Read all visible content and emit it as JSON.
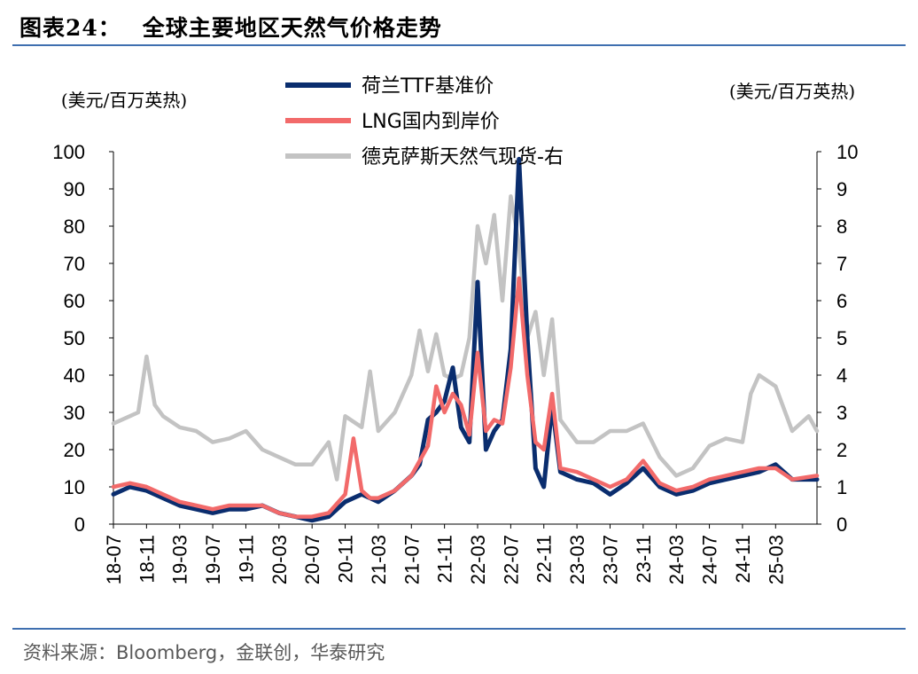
{
  "header": {
    "figure_no": "图表24：",
    "title": "全球主要地区天然气价格走势"
  },
  "source": "资料来源：Bloomberg，金联创，华泰研究",
  "colors": {
    "ttf": "#0a2d6e",
    "lng": "#f26a6a",
    "hh": "#c3c3c3",
    "rule": "#3f6fb0"
  },
  "chart_data": {
    "type": "line",
    "left_axis_unit": "(美元/百万英热)",
    "right_axis_unit": "(美元/百万英热)",
    "y_left": {
      "min": 0,
      "max": 100,
      "ticks": [
        "0",
        "10",
        "20",
        "30",
        "40",
        "50",
        "60",
        "70",
        "80",
        "90",
        "100"
      ]
    },
    "y_right": {
      "min": 0,
      "max": 10,
      "ticks": [
        "0",
        "1",
        "2",
        "3",
        "4",
        "5",
        "6",
        "7",
        "8",
        "9",
        "10"
      ]
    },
    "x_tick_labels": [
      "18-07",
      "18-11",
      "19-03",
      "19-07",
      "19-11",
      "20-03",
      "20-07",
      "20-11",
      "21-03",
      "21-07",
      "21-11",
      "22-03",
      "22-07",
      "22-11",
      "23-03",
      "23-07",
      "23-11",
      "24-03",
      "24-07",
      "24-11",
      "25-03"
    ],
    "x_range": [
      "2018-07",
      "2025-08"
    ],
    "legend": [
      "荷兰TTF基准价",
      "LNG国内到岸价",
      "德克萨斯天然气现货-右"
    ],
    "series": [
      {
        "name": "荷兰TTF基准价",
        "axis": "left",
        "x": [
          "2018-07",
          "2018-09",
          "2018-11",
          "2019-01",
          "2019-03",
          "2019-05",
          "2019-07",
          "2019-09",
          "2019-11",
          "2020-01",
          "2020-03",
          "2020-05",
          "2020-07",
          "2020-09",
          "2020-11",
          "2021-01",
          "2021-02",
          "2021-03",
          "2021-05",
          "2021-07",
          "2021-08",
          "2021-09",
          "2021-10",
          "2021-11",
          "2021-12",
          "2022-01",
          "2022-02",
          "2022-03",
          "2022-04",
          "2022-05",
          "2022-06",
          "2022-07",
          "2022-08",
          "2022-09",
          "2022-10",
          "2022-11",
          "2022-12",
          "2023-01",
          "2023-03",
          "2023-05",
          "2023-07",
          "2023-09",
          "2023-11",
          "2024-01",
          "2024-03",
          "2024-05",
          "2024-07",
          "2024-09",
          "2024-11",
          "2025-01",
          "2025-03",
          "2025-05",
          "2025-08"
        ],
        "values": [
          8,
          10,
          9,
          7,
          5,
          4,
          3,
          4,
          4,
          5,
          3,
          2,
          1,
          2,
          6,
          8,
          7,
          6,
          9,
          13,
          16,
          28,
          30,
          33,
          42,
          26,
          22,
          65,
          20,
          25,
          28,
          47,
          98,
          50,
          15,
          10,
          32,
          14,
          12,
          11,
          8,
          11,
          15,
          10,
          8,
          9,
          11,
          12,
          13,
          14,
          16,
          12,
          12
        ]
      },
      {
        "name": "LNG国内到岸价",
        "axis": "left",
        "x": [
          "2018-07",
          "2018-09",
          "2018-11",
          "2019-01",
          "2019-03",
          "2019-05",
          "2019-07",
          "2019-09",
          "2019-11",
          "2020-01",
          "2020-03",
          "2020-05",
          "2020-07",
          "2020-09",
          "2020-11",
          "2020-12",
          "2021-01",
          "2021-02",
          "2021-03",
          "2021-05",
          "2021-07",
          "2021-09",
          "2021-10",
          "2021-11",
          "2021-12",
          "2022-01",
          "2022-02",
          "2022-03",
          "2022-04",
          "2022-05",
          "2022-06",
          "2022-07",
          "2022-08",
          "2022-09",
          "2022-10",
          "2022-11",
          "2022-12",
          "2023-01",
          "2023-03",
          "2023-05",
          "2023-07",
          "2023-09",
          "2023-11",
          "2024-01",
          "2024-03",
          "2024-05",
          "2024-07",
          "2024-09",
          "2024-11",
          "2025-01",
          "2025-03",
          "2025-05",
          "2025-08"
        ],
        "values": [
          10,
          11,
          10,
          8,
          6,
          5,
          4,
          5,
          5,
          5,
          3,
          2,
          2,
          3,
          8,
          23,
          9,
          7,
          7,
          9,
          13,
          21,
          37,
          30,
          35,
          32,
          24,
          46,
          25,
          28,
          27,
          42,
          66,
          40,
          22,
          20,
          35,
          15,
          14,
          12,
          10,
          12,
          17,
          11,
          9,
          10,
          12,
          13,
          14,
          15,
          15,
          12,
          13
        ]
      },
      {
        "name": "德克萨斯天然气现货-右",
        "axis": "right",
        "x": [
          "2018-07",
          "2018-09",
          "2018-10",
          "2018-11",
          "2018-12",
          "2019-01",
          "2019-03",
          "2019-05",
          "2019-07",
          "2019-09",
          "2019-11",
          "2020-01",
          "2020-03",
          "2020-05",
          "2020-07",
          "2020-09",
          "2020-10",
          "2020-11",
          "2021-01",
          "2021-02",
          "2021-03",
          "2021-05",
          "2021-07",
          "2021-08",
          "2021-09",
          "2021-10",
          "2021-11",
          "2021-12",
          "2022-01",
          "2022-02",
          "2022-03",
          "2022-04",
          "2022-05",
          "2022-06",
          "2022-07",
          "2022-08",
          "2022-09",
          "2022-10",
          "2022-11",
          "2022-12",
          "2023-01",
          "2023-03",
          "2023-05",
          "2023-07",
          "2023-09",
          "2023-11",
          "2024-01",
          "2024-03",
          "2024-05",
          "2024-07",
          "2024-09",
          "2024-11",
          "2024-12",
          "2025-01",
          "2025-03",
          "2025-05",
          "2025-07",
          "2025-08"
        ],
        "values": [
          2.7,
          2.9,
          3.0,
          4.5,
          3.2,
          2.9,
          2.6,
          2.5,
          2.2,
          2.3,
          2.5,
          2.0,
          1.8,
          1.6,
          1.6,
          2.2,
          1.2,
          2.9,
          2.6,
          4.1,
          2.5,
          3.0,
          4.0,
          5.2,
          4.1,
          5.1,
          4.0,
          3.9,
          4.0,
          5.0,
          8.0,
          7.0,
          8.3,
          6.0,
          8.8,
          7.5,
          5.0,
          5.7,
          4.0,
          5.5,
          2.8,
          2.2,
          2.2,
          2.5,
          2.5,
          2.7,
          1.8,
          1.3,
          1.5,
          2.1,
          2.3,
          2.2,
          3.5,
          4.0,
          3.7,
          2.5,
          2.9,
          2.5
        ]
      }
    ]
  }
}
